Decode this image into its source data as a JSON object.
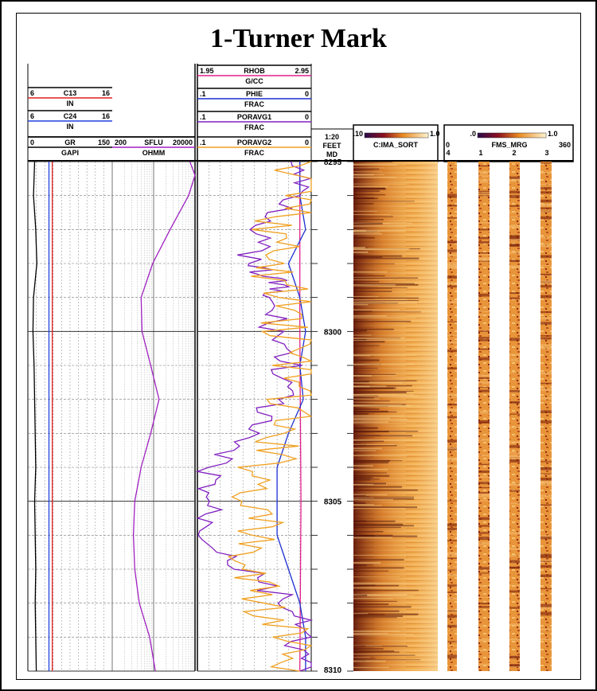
{
  "title": "1-Turner Mark",
  "headers": {
    "c13": {
      "left": "6",
      "name": "C13",
      "right": "16",
      "unit": "IN"
    },
    "c24": {
      "left": "6",
      "name": "C24",
      "right": "16",
      "unit": "IN"
    },
    "gr": {
      "left": "0",
      "name": "GR",
      "right": "150",
      "unit": "GAPI"
    },
    "sflu": {
      "left": "200",
      "name": "SFLU",
      "right": "20000",
      "unit": "OHMM"
    },
    "rhob": {
      "left": "1.95",
      "name": "RHOB",
      "right": "2.95",
      "unit": "G/CC"
    },
    "phie": {
      "left": ".1",
      "name": "PHIE",
      "right": "0",
      "unit": "FRAC"
    },
    "poravg1": {
      "left": ".1",
      "name": "PORAVG1",
      "right": "0",
      "unit": "FRAC"
    },
    "poravg2": {
      "left": ".1",
      "name": "PORAVG2",
      "right": "0",
      "unit": "FRAC"
    },
    "depth": {
      "scale": "1:20",
      "unit": "FEET",
      "ref": "MD"
    },
    "ima": {
      "name": "C:IMA_SORT",
      "bar_min": ".10",
      "bar_max": "1.0"
    },
    "fms": {
      "name": "FMS_MRG",
      "left": "0",
      "right": "360",
      "bar_min": ".0",
      "bar_max": "1.0",
      "ticks": [
        "4",
        "1",
        "2",
        "3"
      ]
    }
  },
  "colors": {
    "gr": "#000000",
    "c13": "#e02020",
    "c24": "#2040e0",
    "sflu": "#a020c0",
    "rhob": "#e0208a",
    "phie": "#1a2fd0",
    "poravg1": "#8020c0",
    "poravg2": "#f0a020"
  },
  "chart_data": {
    "type": "line",
    "y_axis": {
      "name": "Depth",
      "unit": "FEET",
      "range": [
        8295,
        8310
      ],
      "ticks": [
        8295,
        8300,
        8305,
        8310
      ]
    },
    "tracks": [
      {
        "name": "Track 1",
        "series": [
          {
            "name": "GR",
            "unit": "GAPI",
            "range": [
              0,
              150
            ],
            "points": [
              [
                8295,
                12
              ],
              [
                8296,
                10
              ],
              [
                8297,
                14
              ],
              [
                8298,
                16
              ],
              [
                8299,
                10
              ],
              [
                8300,
                9
              ],
              [
                8301,
                11
              ],
              [
                8302,
                12
              ],
              [
                8303,
                13
              ],
              [
                8304,
                14
              ],
              [
                8305,
                12
              ],
              [
                8306,
                13
              ],
              [
                8307,
                14
              ],
              [
                8308,
                13
              ],
              [
                8309,
                14
              ],
              [
                8310,
                15
              ]
            ]
          },
          {
            "name": "C13",
            "unit": "IN",
            "range": [
              6,
              16
            ],
            "points": [
              [
                8295,
                8.9
              ],
              [
                8300,
                8.9
              ],
              [
                8305,
                8.9
              ],
              [
                8310,
                8.9
              ]
            ]
          },
          {
            "name": "C24",
            "unit": "IN",
            "range": [
              6,
              16
            ],
            "points": [
              [
                8295,
                8.5
              ],
              [
                8300,
                8.5
              ],
              [
                8305,
                8.5
              ],
              [
                8310,
                8.5
              ]
            ]
          }
        ]
      },
      {
        "name": "Track 2",
        "scale": "log",
        "series": [
          {
            "name": "SFLU",
            "unit": "OHMM",
            "range": [
              200,
              20000
            ],
            "points": [
              [
                8295,
                15000
              ],
              [
                8295.4,
                20000
              ],
              [
                8296,
                14000
              ],
              [
                8297,
                5000
              ],
              [
                8298,
                1900
              ],
              [
                8299,
                1000
              ],
              [
                8300,
                1050
              ],
              [
                8301,
                1700
              ],
              [
                8302,
                2700
              ],
              [
                8303,
                1700
              ],
              [
                8304,
                1000
              ],
              [
                8305,
                700
              ],
              [
                8306,
                650
              ],
              [
                8307,
                700
              ],
              [
                8308,
                900
              ],
              [
                8309,
                1600
              ],
              [
                8310,
                2200
              ]
            ]
          }
        ]
      },
      {
        "name": "Track 3",
        "series": [
          {
            "name": "RHOB",
            "unit": "G/CC",
            "range": [
              1.95,
              2.95
            ],
            "points": [
              [
                8295,
                2.85
              ],
              [
                8300,
                2.85
              ],
              [
                8305,
                2.86
              ],
              [
                8310,
                2.85
              ]
            ]
          },
          {
            "name": "PHIE",
            "unit": "FRAC",
            "range": [
              0.1,
              0
            ],
            "points": [
              [
                8295,
                0.01
              ],
              [
                8296,
                0.01
              ],
              [
                8297,
                0.005
              ],
              [
                8298,
                0.02
              ],
              [
                8299,
                0.01
              ],
              [
                8300,
                0.005
              ],
              [
                8301,
                0.01
              ],
              [
                8302,
                0.007
              ],
              [
                8303,
                0.02
              ],
              [
                8304,
                0.03
              ],
              [
                8305,
                0.03
              ],
              [
                8306,
                0.03
              ],
              [
                8307,
                0.02
              ],
              [
                8308,
                0.01
              ],
              [
                8309,
                0.005
              ],
              [
                8310,
                0.005
              ]
            ]
          },
          {
            "name": "PORAVG1",
            "unit": "FRAC",
            "range": [
              0.1,
              0
            ],
            "points": [
              [
                8295,
                0.01
              ],
              [
                8296,
                0.01
              ],
              [
                8297,
                0.04
              ],
              [
                8298,
                0.06
              ],
              [
                8298.5,
                0.03
              ],
              [
                8299,
                0.04
              ],
              [
                8300,
                0.03
              ],
              [
                8301,
                0.02
              ],
              [
                8302,
                0.03
              ],
              [
                8303,
                0.06
              ],
              [
                8304,
                0.09
              ],
              [
                8305,
                0.09
              ],
              [
                8306,
                0.09
              ],
              [
                8307,
                0.06
              ],
              [
                8308,
                0.02
              ],
              [
                8309,
                0.01
              ],
              [
                8310,
                0.01
              ]
            ]
          },
          {
            "name": "PORAVG2",
            "unit": "FRAC",
            "range": [
              0.1,
              0
            ],
            "points": [
              [
                8295,
                0.01
              ],
              [
                8296,
                0.01
              ],
              [
                8297,
                0.03
              ],
              [
                8298,
                0.04
              ],
              [
                8299,
                0.02
              ],
              [
                8300,
                0.02
              ],
              [
                8301,
                0.01
              ],
              [
                8302,
                0.02
              ],
              [
                8303,
                0.03
              ],
              [
                8304,
                0.04
              ],
              [
                8305,
                0.05
              ],
              [
                8306,
                0.05
              ],
              [
                8307,
                0.06
              ],
              [
                8308,
                0.04
              ],
              [
                8309,
                0.02
              ],
              [
                8310,
                0.01
              ]
            ]
          }
        ]
      }
    ],
    "images": [
      "C:IMA_SORT",
      "FMS_MRG"
    ]
  }
}
